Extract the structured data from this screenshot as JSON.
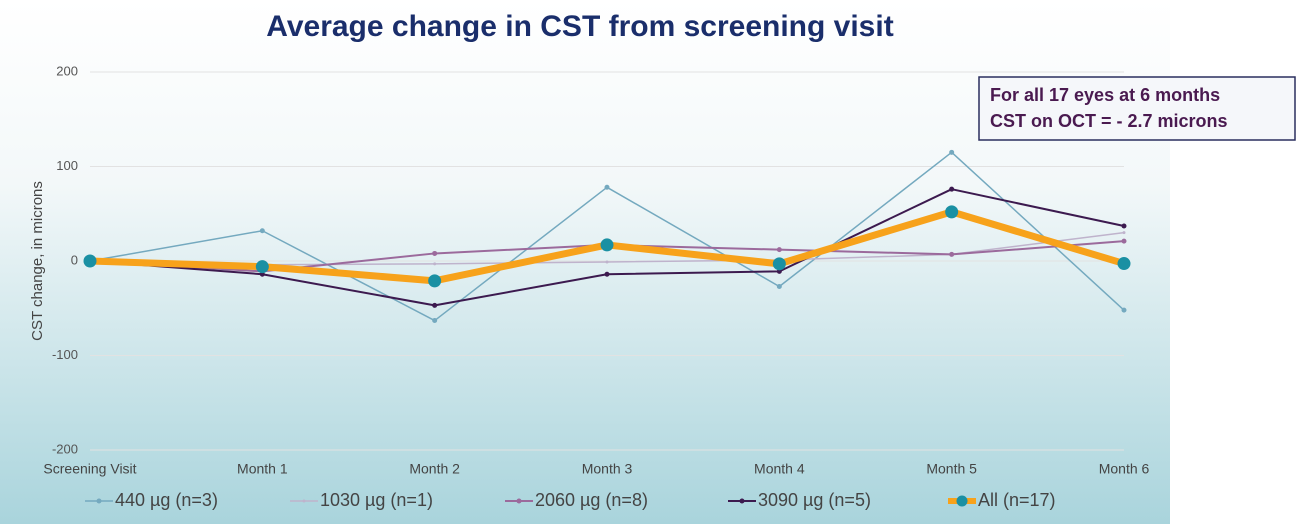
{
  "chart_data": {
    "type": "line",
    "title": "Average change in CST from screening visit",
    "ylabel": "CST change, in microns",
    "annotation": [
      "For all 17 eyes at 6 months",
      "CST on OCT = - 2.7 microns"
    ],
    "categories": [
      "Screening Visit",
      "Month 1",
      "Month 2",
      "Month 3",
      "Month 4",
      "Month 5",
      "Month 6"
    ],
    "series": [
      {
        "name": "440 µg (n=3)",
        "color": "#74a9bf",
        "width": 1.5,
        "marker": 2.5,
        "values": [
          0,
          32,
          -63,
          78,
          -27,
          115,
          -52
        ]
      },
      {
        "name": "1030 µg (n=1)",
        "color": "#bfb3cc",
        "width": 1.5,
        "marker": 1.5,
        "values": [
          0,
          -4,
          -3,
          -1,
          1,
          7,
          30
        ]
      },
      {
        "name": "2060 µg (n=8)",
        "color": "#9b6a9c",
        "width": 2,
        "marker": 2.5,
        "values": [
          0,
          -11,
          8,
          17,
          12,
          7,
          21
        ]
      },
      {
        "name": "3090 µg (n=5)",
        "color": "#3c1a4f",
        "width": 2,
        "marker": 2.5,
        "values": [
          0,
          -14,
          -47,
          -14,
          -11,
          76,
          37
        ]
      },
      {
        "name": "All (n=17)",
        "color": "#f7a21b",
        "marker_color": "#1a90a3",
        "width": 7,
        "marker": 6.5,
        "values": [
          0,
          -6,
          -21,
          17,
          -3,
          52,
          -2.7
        ]
      }
    ],
    "ylim": [
      -200,
      200
    ],
    "yticks": [
      -200,
      -100,
      0,
      100,
      200
    ],
    "grid": true
  }
}
